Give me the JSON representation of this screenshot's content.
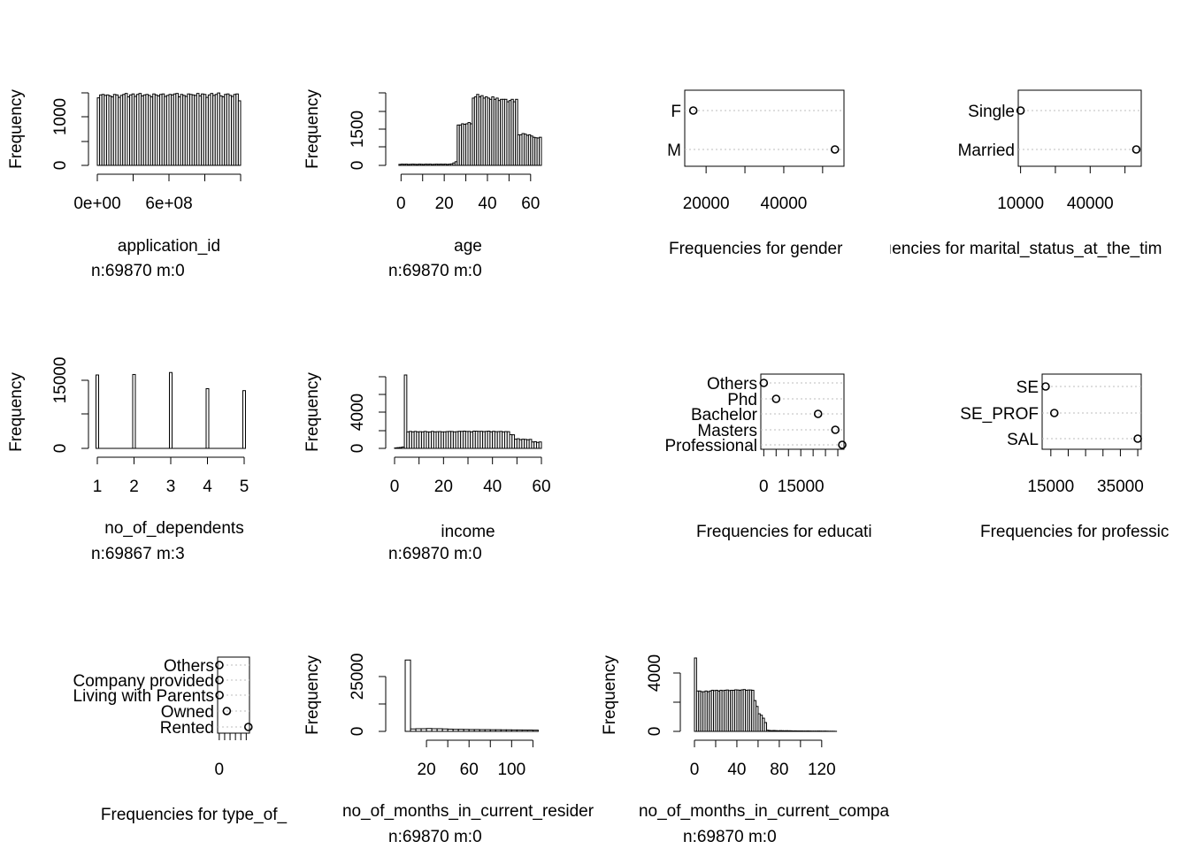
{
  "chart_data": [
    {
      "type": "bar",
      "kind": "hist",
      "name": "application_id",
      "xlabel": "application_id",
      "ylabel": "Frequency",
      "footer": "n:69870 m:0",
      "xlim": [
        0,
        1200000000
      ],
      "ylim": [
        0,
        1500
      ],
      "xticks": [
        0,
        300000000,
        600000000,
        900000000,
        1200000000
      ],
      "xtick_labels": [
        "0e+00",
        "",
        "6e+08",
        "",
        ""
      ],
      "yticks": [
        0,
        500,
        1000,
        1500
      ],
      "ytick_labels": [
        "0",
        "",
        "1000",
        ""
      ],
      "values": [
        1380,
        1440,
        1450,
        1430,
        1440,
        1420,
        1400,
        1450,
        1440,
        1390,
        1430,
        1450,
        1470,
        1400,
        1440,
        1460,
        1410,
        1450,
        1470,
        1420,
        1440,
        1450,
        1430,
        1400,
        1460,
        1440,
        1420,
        1450,
        1460,
        1410,
        1430,
        1450,
        1440,
        1460,
        1470,
        1400,
        1450,
        1430,
        1410,
        1460,
        1450,
        1440,
        1430,
        1470,
        1420,
        1460,
        1450,
        1390,
        1440,
        1470,
        1430,
        1450,
        1480,
        1420,
        1400,
        1450,
        1460,
        1430,
        1410,
        1450,
        1460,
        1320
      ]
    },
    {
      "type": "bar",
      "kind": "hist",
      "name": "age",
      "xlabel": "age",
      "ylabel": "Frequency",
      "footer": "n:69870 m:0",
      "xlim": [
        -3,
        65
      ],
      "ylim": [
        0,
        3000
      ],
      "xticks": [
        0,
        10,
        20,
        30,
        40,
        50,
        60
      ],
      "xtick_labels": [
        "0",
        "",
        "20",
        "",
        "40",
        "",
        "60"
      ],
      "yticks": [
        0,
        750,
        1500,
        2250,
        3000
      ],
      "ytick_labels": [
        "0",
        "",
        "1500",
        "",
        ""
      ],
      "bin_start": -1,
      "bin_width": 1,
      "values": [
        40,
        50,
        45,
        50,
        40,
        45,
        50,
        45,
        40,
        50,
        45,
        40,
        50,
        45,
        50,
        40,
        45,
        50,
        45,
        50,
        45,
        50,
        40,
        50,
        60,
        100,
        150,
        1650,
        1650,
        1700,
        1680,
        1700,
        1750,
        1700,
        2750,
        2800,
        2900,
        2800,
        2850,
        2750,
        2800,
        2750,
        2700,
        2800,
        2700,
        2750,
        2650,
        2700,
        2700,
        2700,
        2600,
        2650,
        2700,
        2600,
        2700,
        1250,
        1250,
        1300,
        1280,
        1230,
        1250,
        1200,
        1150,
        1130,
        1120,
        1150
      ]
    },
    {
      "type": "scatter",
      "kind": "dot",
      "name": "gender",
      "xlabel": "Frequencies for gender",
      "categories": [
        "F",
        "M"
      ],
      "values": [
        16700,
        53170
      ],
      "xlim": [
        14500,
        55500
      ],
      "xticks": [
        20000,
        30000,
        40000,
        50000
      ],
      "xtick_labels": [
        "20000",
        "",
        "40000",
        ""
      ]
    },
    {
      "type": "scatter",
      "kind": "dot",
      "name": "marital_status",
      "xlabel": "ıencies for marital_status_at_the_tim",
      "categories": [
        "Single",
        "Married"
      ],
      "values": [
        10000,
        59870
      ],
      "xlim": [
        9000,
        62000
      ],
      "xticks": [
        10000,
        25000,
        40000,
        55000
      ],
      "xtick_labels": [
        "10000",
        "",
        "40000",
        ""
      ]
    },
    {
      "type": "bar",
      "kind": "hist",
      "name": "no_of_dependents",
      "xlabel": "no_of_dependents",
      "ylabel": "Frequency",
      "footer": "n:69867 m:3",
      "xlim": [
        1,
        5
      ],
      "ylim": [
        0,
        15000
      ],
      "xticks": [
        1,
        2,
        3,
        4,
        5
      ],
      "xtick_labels": [
        "1",
        "2",
        "3",
        "4",
        "5"
      ],
      "yticks": [
        0,
        7500,
        15000
      ],
      "ytick_labels": [
        "0",
        "",
        "15000"
      ],
      "x": [
        1,
        2,
        3,
        4,
        5
      ],
      "values": [
        15000,
        15100,
        15500,
        12200,
        11800
      ]
    },
    {
      "type": "bar",
      "kind": "hist",
      "name": "income",
      "xlabel": "income",
      "ylabel": "Frequency",
      "footer": "n:69870 m:0",
      "xlim": [
        0,
        60
      ],
      "ylim": [
        0,
        8000
      ],
      "xticks": [
        0,
        10,
        20,
        30,
        40,
        50,
        60
      ],
      "xtick_labels": [
        "0",
        "",
        "20",
        "",
        "40",
        "",
        "60"
      ],
      "yticks": [
        0,
        2000,
        4000,
        6000,
        8000
      ],
      "ytick_labels": [
        "0",
        "",
        "4000",
        "",
        ""
      ],
      "bin_start": 0,
      "bin_width": 1,
      "values": [
        50,
        80,
        100,
        150,
        8000,
        1800,
        1850,
        1800,
        1850,
        1800,
        1820,
        1800,
        1850,
        1800,
        1790,
        1850,
        1800,
        1820,
        1830,
        1800,
        1800,
        1830,
        1850,
        1840,
        1800,
        1820,
        1860,
        1850,
        1880,
        1840,
        1850,
        1800,
        1880,
        1870,
        1850,
        1860,
        1830,
        1850,
        1880,
        1800,
        1860,
        1820,
        1830,
        1850,
        1800,
        1830,
        1820,
        1500,
        1480,
        1000,
        1050,
        950,
        1000,
        980,
        940,
        980,
        700,
        720,
        650,
        700
      ]
    },
    {
      "type": "scatter",
      "kind": "dot",
      "name": "education",
      "xlabel": "Frequencies for educati",
      "categories": [
        "Others",
        "Phd",
        "Bachelor",
        "Masters",
        "Professional"
      ],
      "values": [
        0,
        5000,
        22000,
        29000,
        31800
      ],
      "xlim": [
        -1200,
        32500
      ],
      "xticks": [
        0,
        5000,
        10000,
        15000,
        20000,
        25000,
        30000
      ],
      "xtick_labels": [
        "0",
        "",
        "",
        "15000",
        "",
        "",
        ""
      ]
    },
    {
      "type": "scatter",
      "kind": "dot",
      "name": "profession",
      "xlabel": "Frequencies for professic",
      "categories": [
        "SE",
        "SE_PROF",
        "SAL"
      ],
      "values": [
        13500,
        16000,
        40000
      ],
      "xlim": [
        12500,
        41000
      ],
      "xticks": [
        15000,
        20000,
        25000,
        30000,
        35000,
        40000
      ],
      "xtick_labels": [
        "15000",
        "",
        "",
        "",
        "35000",
        ""
      ]
    },
    {
      "type": "scatter",
      "kind": "dot",
      "name": "type_of_residence",
      "xlabel": "Frequencies for type_of_",
      "categories": [
        "Others",
        "Company provided",
        "Living with Parents",
        "Owned",
        "Rented"
      ],
      "values": [
        200,
        300,
        500,
        14000,
        54000
      ],
      "xlim": [
        -3000,
        56000
      ],
      "xticks": [
        0,
        10000,
        20000,
        30000,
        40000,
        50000
      ],
      "xtick_labels": [
        "0",
        "",
        "",
        "",
        "",
        ""
      ]
    },
    {
      "type": "bar",
      "kind": "hist",
      "name": "no_of_months_in_current_residence",
      "xlabel": "no_of_months_in_current_resider",
      "ylabel": "Frequency",
      "footer": "n:69870 m:0",
      "xlim": [
        -10,
        128
      ],
      "ylim": [
        0,
        36000
      ],
      "xticks": [
        20,
        40,
        60,
        80,
        100,
        120
      ],
      "xtick_labels": [
        "20",
        "",
        "60",
        "",
        "100",
        ""
      ],
      "yticks": [
        0,
        12500,
        25000
      ],
      "ytick_labels": [
        "0",
        "",
        "25000"
      ],
      "bin_start": 0,
      "bin_width": 5,
      "values": [
        35000,
        1200,
        1300,
        1300,
        1400,
        1300,
        1300,
        1200,
        1100,
        1000,
        1000,
        950,
        900,
        900,
        850,
        850,
        800,
        800,
        750,
        750,
        700,
        700,
        650,
        650,
        600
      ]
    },
    {
      "type": "bar",
      "kind": "hist",
      "name": "no_of_months_in_current_company",
      "xlabel": "no_of_months_in_current_compa",
      "ylabel": "Frequency",
      "footer": "n:69870 m:0",
      "xlim": [
        -5,
        136
      ],
      "ylim": [
        0,
        5000
      ],
      "xticks": [
        0,
        20,
        40,
        60,
        80,
        100,
        120
      ],
      "xtick_labels": [
        "0",
        "",
        "40",
        "",
        "80",
        "",
        "120"
      ],
      "yticks": [
        0,
        2000,
        4000
      ],
      "ytick_labels": [
        "0",
        "",
        "4000"
      ],
      "bin_start": 0,
      "bin_width": 2,
      "values": [
        5000,
        2750,
        2750,
        2700,
        2700,
        2750,
        2700,
        2750,
        2800,
        2780,
        2800,
        2750,
        2800,
        2780,
        2800,
        2820,
        2780,
        2800,
        2800,
        2830,
        2820,
        2800,
        2830,
        2850,
        2800,
        2820,
        2820,
        2800,
        2100,
        1700,
        1200,
        1100,
        900,
        600,
        80,
        60,
        50,
        60,
        50,
        40,
        50,
        45,
        40,
        45,
        40,
        40,
        30,
        35,
        30,
        30,
        30,
        25,
        25,
        30,
        25,
        20,
        20,
        20,
        25,
        20,
        15,
        20,
        15,
        10,
        10,
        10,
        5
      ]
    }
  ]
}
